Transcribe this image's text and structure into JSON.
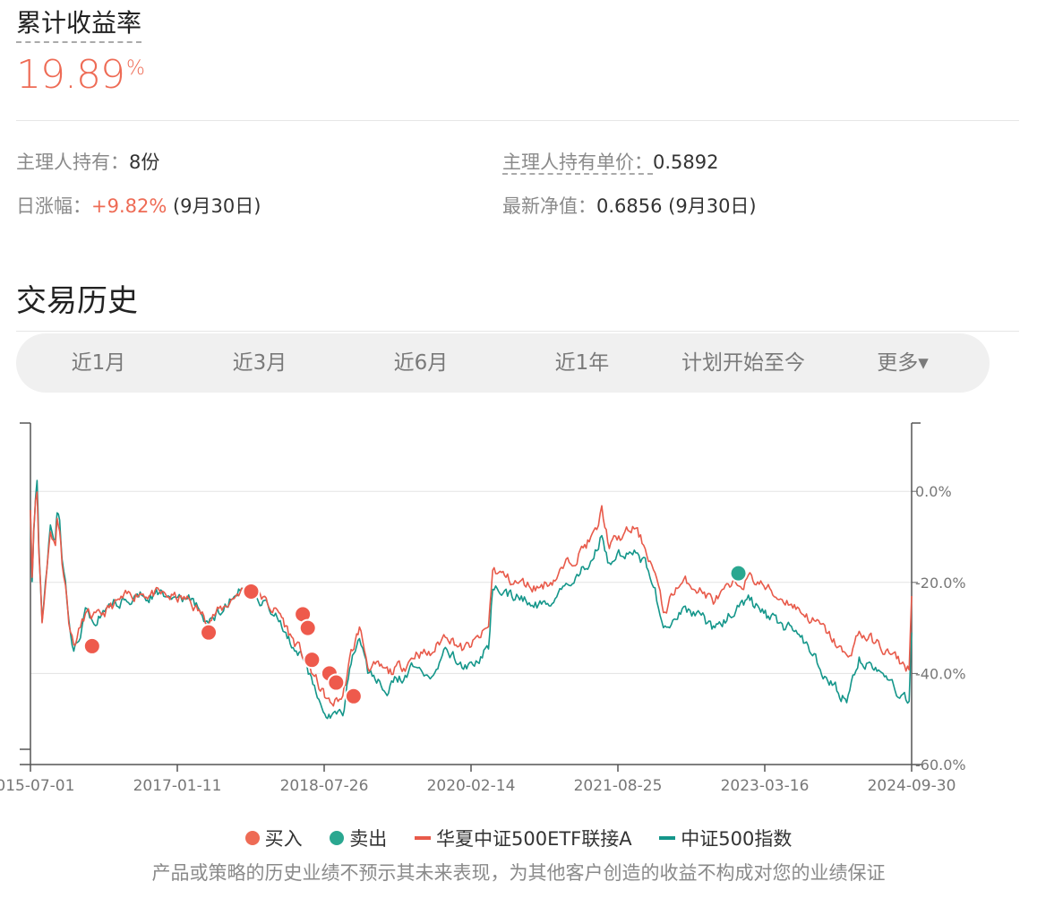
{
  "header": {
    "title": "累计收益率",
    "return_value": "19.89",
    "return_unit": "%"
  },
  "stats": {
    "holding_label": "主理人持有：",
    "holding_value": "8份",
    "unit_price_label": "主理人持有单价：",
    "unit_price_value": "0.5892",
    "daily_change_label": "日涨幅：",
    "daily_change_value": "+9.82%",
    "daily_change_date": " (9月30日)",
    "nav_label": "最新净值：",
    "nav_value": "0.6856",
    "nav_date": " (9月30日)"
  },
  "section": {
    "title": "交易历史"
  },
  "tabs": [
    {
      "label": "近1月"
    },
    {
      "label": "近3月"
    },
    {
      "label": "近6月"
    },
    {
      "label": "近1年"
    },
    {
      "label": "计划开始至今"
    },
    {
      "label": "更多▾"
    }
  ],
  "legend": {
    "buy": "买入",
    "sell": "卖出",
    "fund": "华夏中证500ETF联接A",
    "index": "中证500指数"
  },
  "disclaimer": "产品或策略的历史业绩不预示其未来表现，为其他客户创造的收益不构成对您的业绩保证",
  "colors": {
    "accent_red": "#ee6b55",
    "fund_line": "#e85a4a",
    "index_line": "#14968a",
    "sell_dot": "#2aa790"
  },
  "chart_data": {
    "type": "line",
    "x_tick_labels": [
      "2015-07-01",
      "2017-01-11",
      "2018-07-26",
      "2020-02-14",
      "2021-08-25",
      "2023-03-16",
      "2024-09-30"
    ],
    "y_tick_labels": [
      "0.0%",
      "-20.0%",
      "-40.0%",
      "-60.0%"
    ],
    "ylim": [
      -60,
      15
    ],
    "series": [
      {
        "name": "华夏中证500ETF联接A",
        "points": [
          [
            0,
            -3
          ],
          [
            0.02,
            -18
          ],
          [
            0.04,
            -8
          ],
          [
            0.06,
            -2
          ],
          [
            0.08,
            0
          ],
          [
            0.1,
            -12
          ],
          [
            0.14,
            -28
          ],
          [
            0.2,
            -17
          ],
          [
            0.24,
            -8
          ],
          [
            0.3,
            -12
          ],
          [
            0.32,
            -6
          ],
          [
            0.35,
            -8
          ],
          [
            0.38,
            -15
          ],
          [
            0.42,
            -20
          ],
          [
            0.46,
            -28
          ],
          [
            0.52,
            -34
          ],
          [
            0.58,
            -31
          ],
          [
            0.66,
            -27
          ],
          [
            0.8,
            -28
          ],
          [
            1.0,
            -25
          ],
          [
            1.3,
            -22
          ],
          [
            1.6,
            -23
          ],
          [
            1.9,
            -24
          ],
          [
            2.1,
            -28
          ],
          [
            2.3,
            -26
          ],
          [
            2.5,
            -22
          ],
          [
            2.7,
            -21
          ],
          [
            2.85,
            -25
          ],
          [
            3.0,
            -27
          ],
          [
            3.1,
            -31
          ],
          [
            3.3,
            -37
          ],
          [
            3.5,
            -44
          ],
          [
            3.6,
            -47
          ],
          [
            3.75,
            -45
          ],
          [
            3.85,
            -36
          ],
          [
            3.95,
            -30
          ],
          [
            4.05,
            -38
          ],
          [
            4.3,
            -40
          ],
          [
            4.5,
            -38
          ],
          [
            4.65,
            -35
          ],
          [
            4.8,
            -36
          ],
          [
            5.0,
            -31
          ],
          [
            5.2,
            -35
          ],
          [
            5.35,
            -33
          ],
          [
            5.5,
            -30
          ],
          [
            5.55,
            -17
          ],
          [
            5.8,
            -20
          ],
          [
            6.1,
            -21
          ],
          [
            6.3,
            -19
          ],
          [
            6.6,
            -13
          ],
          [
            6.8,
            -9
          ],
          [
            6.86,
            -4
          ],
          [
            6.95,
            -12
          ],
          [
            7.1,
            -10
          ],
          [
            7.25,
            -8
          ],
          [
            7.4,
            -13
          ],
          [
            7.5,
            -18
          ],
          [
            7.6,
            -27
          ],
          [
            7.75,
            -21
          ],
          [
            7.9,
            -20
          ],
          [
            8.0,
            -21
          ],
          [
            8.2,
            -24
          ],
          [
            8.45,
            -21
          ],
          [
            8.62,
            -19
          ],
          [
            8.75,
            -20
          ],
          [
            8.95,
            -23
          ],
          [
            9.1,
            -24
          ],
          [
            9.3,
            -27
          ],
          [
            9.5,
            -30
          ],
          [
            9.7,
            -34
          ],
          [
            9.8,
            -37
          ],
          [
            9.95,
            -31
          ],
          [
            10.2,
            -34
          ],
          [
            10.4,
            -37
          ],
          [
            10.55,
            -39
          ],
          [
            10.58,
            -23
          ]
        ]
      },
      {
        "name": "中证500指数",
        "points": [
          [
            0,
            -3
          ],
          [
            0.02,
            -18
          ],
          [
            0.04,
            -8
          ],
          [
            0.06,
            -2
          ],
          [
            0.08,
            1
          ],
          [
            0.1,
            -12
          ],
          [
            0.14,
            -28
          ],
          [
            0.2,
            -17
          ],
          [
            0.24,
            -7
          ],
          [
            0.3,
            -10
          ],
          [
            0.32,
            -5
          ],
          [
            0.35,
            -7
          ],
          [
            0.38,
            -15
          ],
          [
            0.42,
            -20
          ],
          [
            0.46,
            -28
          ],
          [
            0.52,
            -35
          ],
          [
            0.58,
            -32
          ],
          [
            0.66,
            -27
          ],
          [
            0.8,
            -28
          ],
          [
            1.0,
            -25
          ],
          [
            1.3,
            -22
          ],
          [
            1.6,
            -23
          ],
          [
            1.9,
            -24
          ],
          [
            2.1,
            -28
          ],
          [
            2.3,
            -26
          ],
          [
            2.5,
            -22
          ],
          [
            2.7,
            -21
          ],
          [
            2.85,
            -26
          ],
          [
            3.0,
            -28
          ],
          [
            3.1,
            -32
          ],
          [
            3.3,
            -38
          ],
          [
            3.5,
            -46
          ],
          [
            3.6,
            -49
          ],
          [
            3.75,
            -48
          ],
          [
            3.85,
            -38
          ],
          [
            3.95,
            -31
          ],
          [
            4.05,
            -40
          ],
          [
            4.3,
            -43
          ],
          [
            4.5,
            -40
          ],
          [
            4.65,
            -38
          ],
          [
            4.8,
            -40
          ],
          [
            5.0,
            -34
          ],
          [
            5.2,
            -39
          ],
          [
            5.35,
            -37
          ],
          [
            5.5,
            -34
          ],
          [
            5.55,
            -21
          ],
          [
            5.8,
            -23
          ],
          [
            6.1,
            -25
          ],
          [
            6.3,
            -23
          ],
          [
            6.6,
            -18
          ],
          [
            6.8,
            -13
          ],
          [
            6.86,
            -9
          ],
          [
            6.95,
            -16
          ],
          [
            7.1,
            -14
          ],
          [
            7.25,
            -12
          ],
          [
            7.4,
            -17
          ],
          [
            7.5,
            -22
          ],
          [
            7.6,
            -31
          ],
          [
            7.75,
            -27
          ],
          [
            7.9,
            -26
          ],
          [
            8.0,
            -27
          ],
          [
            8.2,
            -30
          ],
          [
            8.45,
            -26
          ],
          [
            8.62,
            -24
          ],
          [
            8.75,
            -26
          ],
          [
            8.95,
            -29
          ],
          [
            9.1,
            -30
          ],
          [
            9.3,
            -34
          ],
          [
            9.5,
            -39
          ],
          [
            9.7,
            -44
          ],
          [
            9.8,
            -46
          ],
          [
            9.95,
            -37
          ],
          [
            10.2,
            -40
          ],
          [
            10.4,
            -44
          ],
          [
            10.55,
            -46
          ],
          [
            10.58,
            -31
          ]
        ]
      }
    ],
    "buy_points": [
      [
        0.74,
        -34
      ],
      [
        2.14,
        -31
      ],
      [
        2.65,
        -22
      ],
      [
        3.27,
        -27
      ],
      [
        3.33,
        -30
      ],
      [
        3.38,
        -37
      ],
      [
        3.59,
        -40
      ],
      [
        3.67,
        -42
      ],
      [
        3.88,
        -45
      ]
    ],
    "sell_points": [
      [
        8.5,
        -18
      ]
    ],
    "grid": true,
    "legend": "bottom-center"
  }
}
